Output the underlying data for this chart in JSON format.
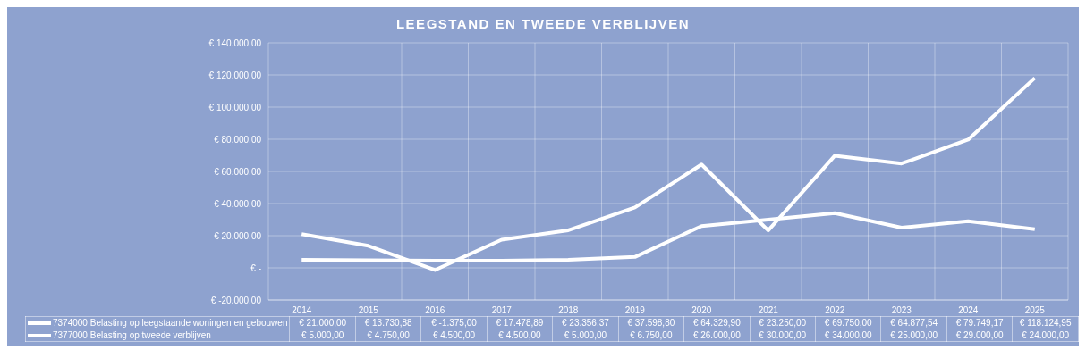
{
  "chart_data": {
    "type": "line",
    "title": "LEEGSTAND EN TWEEDE VERBLIJVEN",
    "categories": [
      "2014",
      "2015",
      "2016",
      "2017",
      "2018",
      "2019",
      "2020",
      "2021",
      "2022",
      "2023",
      "2024",
      "2025"
    ],
    "series": [
      {
        "name": "7374000 Belasting op leegstaande woningen en gebouwen",
        "color": "#ffffff",
        "values": [
          21000,
          13730.88,
          -1375,
          17478.89,
          23356.37,
          37598.8,
          64329.9,
          23250,
          69750,
          64877.54,
          79749.17,
          118124.95
        ],
        "value_labels": [
          "€ 21.000,00",
          "€ 13.730,88",
          "€ -1.375,00",
          "€ 17.478,89",
          "€ 23.356,37",
          "€ 37.598,80",
          "€ 64.329,90",
          "€ 23.250,00",
          "€ 69.750,00",
          "€ 64.877,54",
          "€ 79.749,17",
          "€ 118.124,95"
        ]
      },
      {
        "name": "7377000 Belasting op tweede verblijven",
        "color": "#ffffff",
        "values": [
          5000,
          4750,
          4500,
          4500,
          5000,
          6750,
          26000,
          30000,
          34000,
          25000,
          29000,
          24000
        ],
        "value_labels": [
          "€ 5.000,00",
          "€ 4.750,00",
          "€ 4.500,00",
          "€ 4.500,00",
          "€ 5.000,00",
          "€ 6.750,00",
          "€ 26.000,00",
          "€ 30.000,00",
          "€ 34.000,00",
          "€ 25.000,00",
          "€ 29.000,00",
          "€ 24.000,00"
        ]
      }
    ],
    "ylim": [
      -20000,
      140000
    ],
    "yticks": [
      {
        "value": -20000,
        "label": "€ -20.000,00"
      },
      {
        "value": 0,
        "label": "€ -"
      },
      {
        "value": 20000,
        "label": "€ 20.000,00"
      },
      {
        "value": 40000,
        "label": "€ 40.000,00"
      },
      {
        "value": 60000,
        "label": "€ 60.000,00"
      },
      {
        "value": 80000,
        "label": "€ 80.000,00"
      },
      {
        "value": 100000,
        "label": "€ 100.000,00"
      },
      {
        "value": 120000,
        "label": "€ 120.000,00"
      },
      {
        "value": 140000,
        "label": "€ 140.000,00"
      }
    ],
    "grid": true,
    "legend": "bottom"
  }
}
